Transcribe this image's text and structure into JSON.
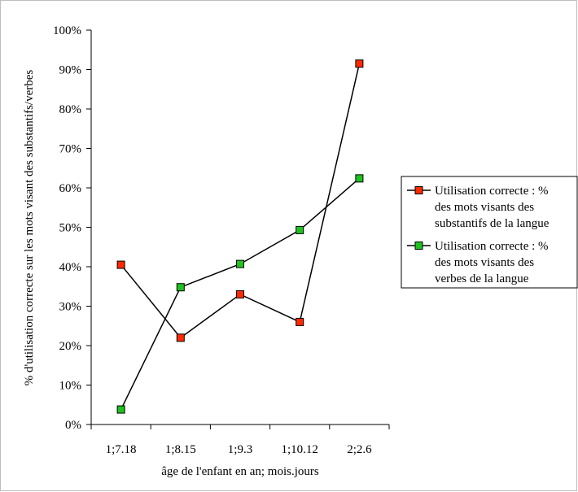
{
  "chart_data": {
    "type": "line",
    "title": "",
    "xlabel": "âge de l'enfant en an; mois.jours",
    "ylabel": "% d'utilisation correcte sur les mots visant des substantifs/verbes",
    "categories": [
      "1;7.18",
      "1;8.15",
      "1;9.3",
      "1;10.12",
      "2;2.6"
    ],
    "ylim": [
      0,
      100
    ],
    "y_ticks": [
      "0%",
      "10%",
      "20%",
      "30%",
      "40%",
      "50%",
      "60%",
      "70%",
      "80%",
      "90%",
      "100%"
    ],
    "grid": false,
    "legend_position": "right",
    "series": [
      {
        "name": "Utilisation correcte : % des mots visants des substantifs de la langue",
        "name_lines": [
          "Utilisation correcte : %",
          "des mots visants des",
          "substantifs de la langue"
        ],
        "color": "#ff2a00",
        "values": [
          40.5,
          22,
          33,
          26,
          91.5
        ]
      },
      {
        "name": "Utilisation correcte : % des mots visants des verbes de la langue",
        "name_lines": [
          "Utilisation correcte : %",
          "des mots visants des",
          "verbes de la langue"
        ],
        "color": "#1fc21f",
        "values": [
          3.8,
          34.8,
          40.7,
          49.3,
          62.4
        ]
      }
    ]
  }
}
